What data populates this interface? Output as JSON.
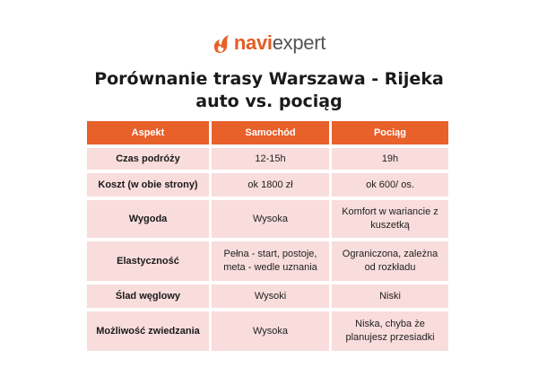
{
  "brand": {
    "part1": "navi",
    "part2": "expert",
    "accent": "#e8602a"
  },
  "title": {
    "line1": "Porównanie trasy Warszawa - Rijeka",
    "line2": "auto vs. pociąg"
  },
  "table": {
    "headers": [
      "Aspekt",
      "Samochód",
      "Pociąg"
    ],
    "rows": [
      [
        "Czas podróży",
        "12-15h",
        "19h"
      ],
      [
        "Koszt (w obie strony)",
        "ok 1800 zł",
        "ok 600/ os."
      ],
      [
        "Wygoda",
        "Wysoka",
        "Komfort w wariancie z kuszetką"
      ],
      [
        "Elastyczność",
        "Pełna - start, postoje, meta - wedle uznania",
        "Ograniczona, zależna od rozkładu"
      ],
      [
        "Ślad węglowy",
        "Wysoki",
        "Niski"
      ],
      [
        "Możliwość zwiedzania",
        "Wysoka",
        "Niska, chyba że planujesz przesiadki"
      ]
    ]
  }
}
